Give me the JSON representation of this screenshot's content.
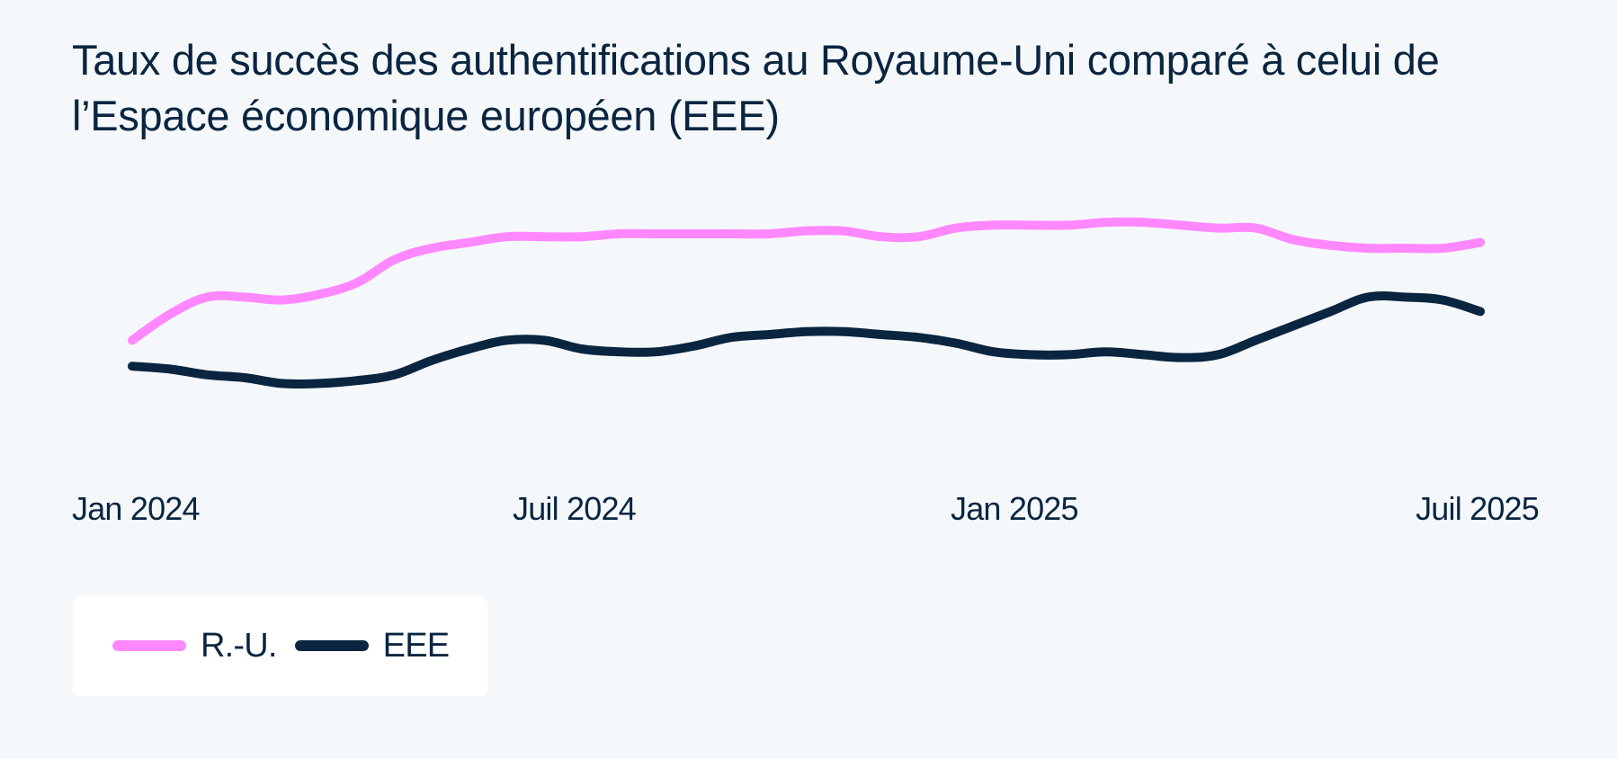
{
  "chart_data": {
    "type": "line",
    "title": "Taux de succès des authentifications au Royaume-Uni comparé à celui de l’Espace économique européen (EEE)",
    "xlabel": "",
    "ylabel": "",
    "x_tick_labels": [
      "Jan 2024",
      "Juil 2024",
      "Jan 2025",
      "Juil 2025"
    ],
    "x": [
      0,
      0.5,
      1,
      1.5,
      2,
      2.5,
      3,
      3.5,
      4,
      4.5,
      5,
      5.5,
      6,
      6.5,
      7,
      7.5,
      8,
      8.5,
      9,
      9.5,
      10,
      10.5,
      11,
      11.5,
      12,
      12.5,
      13,
      13.5,
      14,
      14.5,
      15,
      15.5,
      16,
      16.5,
      17,
      17.5,
      18
    ],
    "ylim": [
      0,
      100
    ],
    "grid": false,
    "y_axis_visible": false,
    "legend_position": "bottom-left",
    "series": [
      {
        "name": "R.-U.",
        "color": "#ff88ff",
        "values": [
          38,
          47,
          53,
          53,
          52,
          54,
          58,
          66,
          70,
          72,
          74,
          74,
          74,
          75,
          75,
          75,
          75,
          75,
          76,
          76,
          74,
          74,
          77,
          78,
          78,
          78,
          79,
          79,
          78,
          77,
          77,
          73,
          71,
          70,
          70,
          70,
          72
        ]
      },
      {
        "name": "EEE",
        "color": "#0a2540",
        "values": [
          29,
          28,
          26,
          25,
          23,
          23,
          24,
          26,
          31,
          35,
          38,
          38,
          35,
          34,
          34,
          36,
          39,
          40,
          41,
          41,
          40,
          39,
          37,
          34,
          33,
          33,
          34,
          33,
          32,
          33,
          38,
          43,
          48,
          53,
          53,
          52,
          48
        ]
      }
    ]
  }
}
